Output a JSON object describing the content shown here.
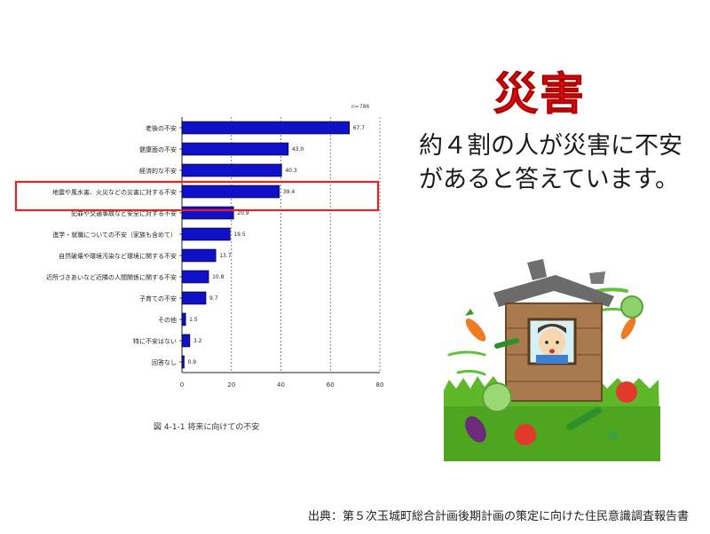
{
  "title": "災害",
  "message": "約４割の人が災害に不安があると答えています。",
  "source": "出典：第５次玉城町総合計画後期計画の策定に向けた住民意識調査報告書",
  "figure_caption": "図 4-1-1  将来に向けての不安",
  "colors": {
    "title": "#e8141b",
    "bar": "#1010c8",
    "highlight": "#e52525"
  },
  "chart_data": {
    "type": "bar",
    "orientation": "horizontal",
    "n_label": "n=786",
    "categories": [
      "老後の不安",
      "健康面の不安",
      "経済的な不安",
      "地震や風水害、火災などの災害に対する不安",
      "犯罪や交通事故など安全に対する不安",
      "進学・就職についての不安（家族も含めて）",
      "自然破壊や環境汚染など環境に関する不安",
      "近所づきあいなど近隣の人間関係に関する不安",
      "子育ての不安",
      "その他",
      "特に不安はない",
      "回答なし"
    ],
    "values": [
      67.7,
      43.0,
      40.3,
      39.4,
      20.9,
      19.5,
      13.7,
      10.8,
      9.7,
      1.5,
      3.2,
      0.9
    ],
    "value_labels": [
      "67.7",
      "43.0",
      "40.3",
      "39.4",
      "20.9",
      "19.5",
      "13.7",
      "10.8",
      "9.7",
      "1.5",
      "3.2",
      "0.9"
    ],
    "highlighted_index": 3,
    "x_ticks": [
      "0",
      "20",
      "40",
      "60",
      "80"
    ],
    "xlim": [
      0,
      80
    ],
    "grid": "dashed vertical"
  }
}
